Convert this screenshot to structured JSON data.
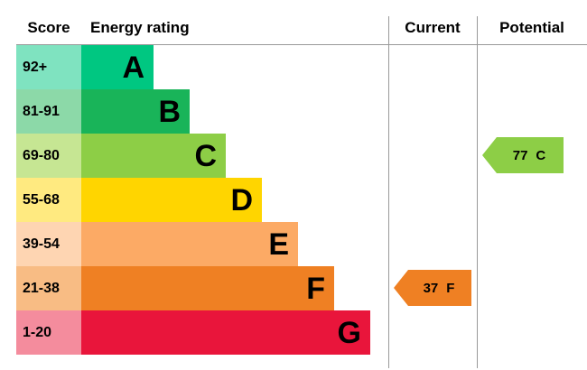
{
  "header": {
    "score": "Score",
    "energy_rating": "Energy rating",
    "current": "Current",
    "potential": "Potential"
  },
  "chart_data": {
    "type": "bar",
    "title": "Energy efficiency rating chart (EPC)",
    "bands": [
      {
        "score": "92+",
        "letter": "A",
        "color": "#00c781",
        "tint": "#7fe3c0"
      },
      {
        "score": "81-91",
        "letter": "B",
        "color": "#19b459",
        "tint": "#8cd9a8"
      },
      {
        "score": "69-80",
        "letter": "C",
        "color": "#8dce46",
        "tint": "#c6e693"
      },
      {
        "score": "55-68",
        "letter": "D",
        "color": "#ffd500",
        "tint": "#ffea80"
      },
      {
        "score": "39-54",
        "letter": "E",
        "color": "#fcaa65",
        "tint": "#fed5b2"
      },
      {
        "score": "21-38",
        "letter": "F",
        "color": "#ef8023",
        "tint": "#f8bc84"
      },
      {
        "score": "1-20",
        "letter": "G",
        "color": "#e9153b",
        "tint": "#f48c9d"
      }
    ],
    "current": {
      "value": "37",
      "letter": "F",
      "label": "37 F",
      "row_index": 5,
      "color": "#ef8023"
    },
    "potential": {
      "value": "77",
      "letter": "C",
      "label": "77 C",
      "row_index": 2,
      "color": "#8dce46"
    }
  }
}
